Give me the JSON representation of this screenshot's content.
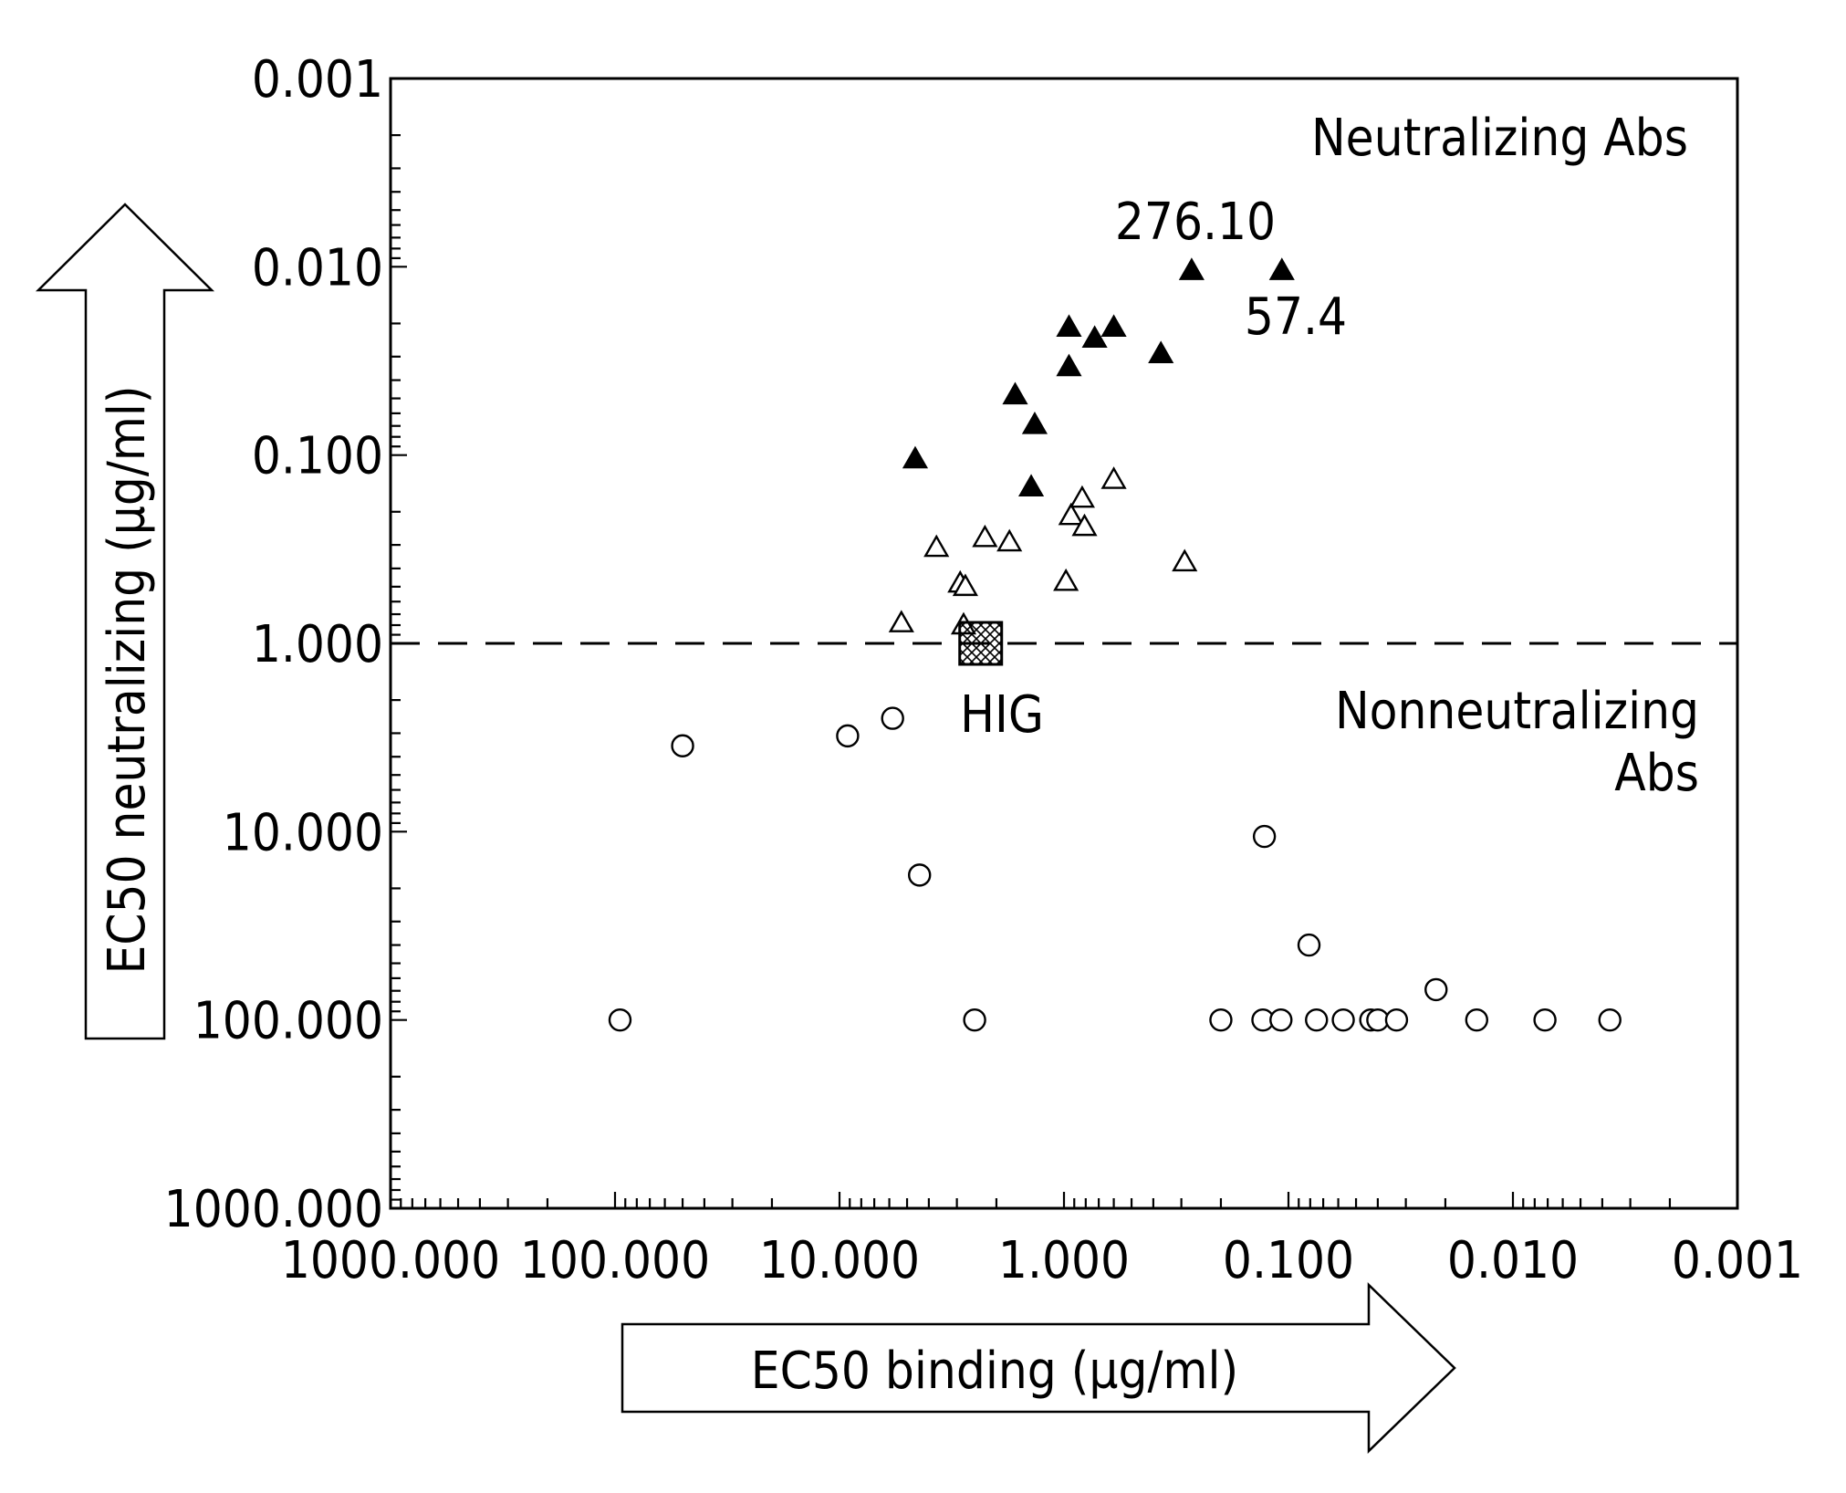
{
  "chart_data": {
    "type": "scatter",
    "x_axis": {
      "label": "EC50 binding (µg/ml)",
      "scale": "log",
      "reversed": true,
      "range": [
        1000,
        0.001
      ],
      "tick_labels": [
        "1000.000",
        "100.000",
        "10.000",
        "1.000",
        "0.100",
        "0.010",
        "0.001"
      ]
    },
    "y_axis": {
      "label": "EC50 neutralizing (µg/ml)",
      "scale": "log",
      "reversed": true,
      "range": [
        1000,
        0.001
      ],
      "tick_labels": [
        "1000.000",
        "100.000",
        "10.000",
        "1.000",
        "0.100",
        "0.010",
        "0.001"
      ]
    },
    "grid": false,
    "threshold": {
      "y": 1.0,
      "style": "dashed"
    },
    "annotations": {
      "region_neutralizing": "Neutralizing Abs",
      "region_nonneutralizing_line1": "Nonneutralizing",
      "region_nonneutralizing_line2": "Abs",
      "label_27610": "276.10",
      "label_574": "57.4",
      "label_hig": "HIG"
    },
    "series": [
      {
        "marker": "filled-triangle",
        "points": [
          {
            "x": 4.6,
            "y": 0.105
          },
          {
            "x": 1.65,
            "y": 0.048
          },
          {
            "x": 1.4,
            "y": 0.148
          },
          {
            "x": 1.35,
            "y": 0.069
          },
          {
            "x": 0.95,
            "y": 0.021
          },
          {
            "x": 0.95,
            "y": 0.034
          },
          {
            "x": 0.73,
            "y": 0.024
          },
          {
            "x": 0.6,
            "y": 0.021
          },
          {
            "x": 0.37,
            "y": 0.029
          },
          {
            "x": 0.27,
            "y": 0.0105
          },
          {
            "x": 0.107,
            "y": 0.0105
          }
        ]
      },
      {
        "marker": "open-triangle",
        "points": [
          {
            "x": 5.3,
            "y": 0.78
          },
          {
            "x": 3.7,
            "y": 0.31
          },
          {
            "x": 2.9,
            "y": 0.48
          },
          {
            "x": 2.75,
            "y": 0.5
          },
          {
            "x": 2.8,
            "y": 0.8
          },
          {
            "x": 2.25,
            "y": 0.275
          },
          {
            "x": 1.75,
            "y": 0.29
          },
          {
            "x": 0.98,
            "y": 0.47
          },
          {
            "x": 0.93,
            "y": 0.21
          },
          {
            "x": 0.83,
            "y": 0.17
          },
          {
            "x": 0.81,
            "y": 0.24
          },
          {
            "x": 0.6,
            "y": 0.135
          },
          {
            "x": 0.29,
            "y": 0.37
          }
        ]
      },
      {
        "marker": "open-circle",
        "points": [
          {
            "x": 95,
            "y": 100
          },
          {
            "x": 50,
            "y": 3.5
          },
          {
            "x": 9.2,
            "y": 3.1
          },
          {
            "x": 5.8,
            "y": 2.5
          },
          {
            "x": 4.4,
            "y": 17
          },
          {
            "x": 2.5,
            "y": 100
          },
          {
            "x": 0.2,
            "y": 100
          },
          {
            "x": 0.13,
            "y": 100
          },
          {
            "x": 0.128,
            "y": 10.6
          },
          {
            "x": 0.108,
            "y": 100
          },
          {
            "x": 0.081,
            "y": 40
          },
          {
            "x": 0.075,
            "y": 100
          },
          {
            "x": 0.057,
            "y": 100
          },
          {
            "x": 0.043,
            "y": 100
          },
          {
            "x": 0.04,
            "y": 100
          },
          {
            "x": 0.033,
            "y": 100
          },
          {
            "x": 0.022,
            "y": 69
          },
          {
            "x": 0.0145,
            "y": 100
          },
          {
            "x": 0.0072,
            "y": 100
          },
          {
            "x": 0.0037,
            "y": 100
          }
        ]
      },
      {
        "marker": "hatched-square",
        "label": "HIG",
        "points": [
          {
            "x": 2.35,
            "y": 1.0
          }
        ]
      }
    ]
  }
}
